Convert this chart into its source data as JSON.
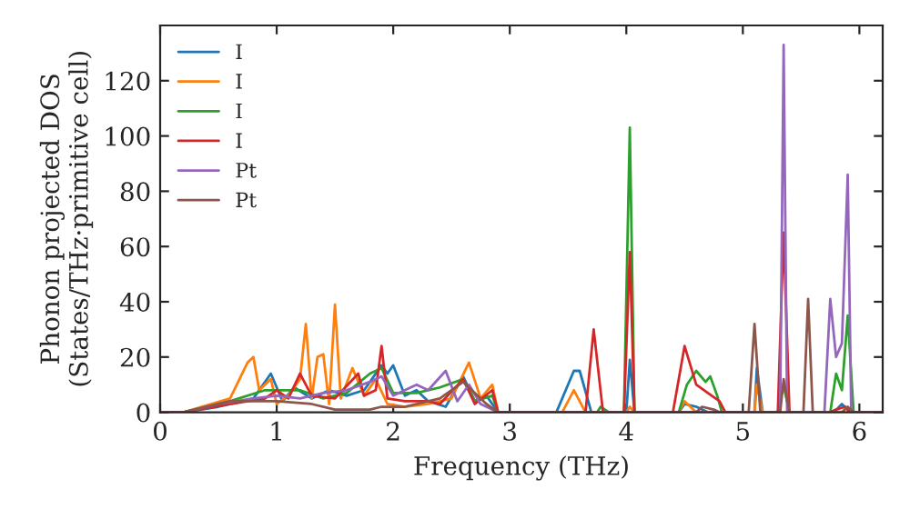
{
  "chart_data": {
    "type": "line",
    "xlabel": "Frequency (THz)",
    "ylabel": "Phonon projected DOS\n(States/THz·primitive cell)",
    "xlim": [
      0,
      6.2
    ],
    "ylim": [
      0,
      140
    ],
    "xticks": [
      0,
      1,
      2,
      3,
      4,
      5,
      6
    ],
    "yticks": [
      0,
      20,
      40,
      60,
      80,
      100,
      120
    ],
    "legend": "top left",
    "grid": false,
    "marker": "none",
    "line_style": "solid",
    "series": [
      {
        "name": "I",
        "color": "#1f77b4",
        "x": [
          0,
          0.2,
          0.5,
          0.8,
          0.95,
          1.05,
          1.15,
          1.3,
          1.45,
          1.6,
          1.75,
          1.9,
          1.95,
          2.0,
          2.1,
          2.2,
          2.3,
          2.45,
          2.6,
          2.7,
          2.8,
          2.9,
          3.4,
          3.55,
          3.6,
          3.7,
          4.0,
          4.03,
          4.07,
          4.45,
          4.5,
          4.6,
          4.7,
          5.1,
          5.12,
          5.17,
          5.3,
          5.35,
          5.4,
          5.78,
          5.85,
          5.92,
          6.2
        ],
        "values": [
          0,
          0,
          2,
          5,
          14,
          4,
          9,
          5,
          8,
          6,
          8,
          17,
          14,
          17,
          6,
          8,
          4,
          2,
          13,
          4,
          6,
          0,
          0,
          15,
          15,
          0,
          0,
          19,
          0,
          0,
          3,
          2,
          0,
          0,
          16,
          0,
          0,
          10,
          0,
          0,
          3,
          0,
          0
        ]
      },
      {
        "name": "I",
        "color": "#ff7f0e",
        "x": [
          0,
          0.2,
          0.6,
          0.75,
          0.8,
          0.85,
          0.95,
          1.0,
          1.1,
          1.2,
          1.25,
          1.3,
          1.35,
          1.4,
          1.45,
          1.5,
          1.55,
          1.65,
          1.75,
          1.85,
          1.95,
          2.1,
          2.3,
          2.5,
          2.65,
          2.75,
          2.85,
          2.9,
          3.45,
          3.55,
          3.65,
          4.0,
          4.03,
          4.07,
          4.45,
          4.5,
          4.6,
          5.1,
          5.12,
          5.17,
          6.2
        ],
        "values": [
          0,
          0,
          5,
          18,
          20,
          8,
          12,
          3,
          6,
          12,
          32,
          5,
          20,
          21,
          3,
          39,
          5,
          16,
          6,
          12,
          3,
          2,
          3,
          5,
          18,
          5,
          10,
          0,
          0,
          8,
          0,
          0,
          2,
          0,
          0,
          4,
          0,
          0,
          10,
          0,
          0
        ]
      },
      {
        "name": "I",
        "color": "#2ca02c",
        "x": [
          0,
          0.2,
          0.6,
          0.9,
          1.2,
          1.4,
          1.6,
          1.8,
          1.9,
          2.0,
          2.2,
          2.4,
          2.6,
          2.7,
          2.85,
          2.9,
          3.75,
          3.78,
          3.85,
          3.98,
          4.03,
          4.07,
          4.45,
          4.52,
          4.6,
          4.68,
          4.72,
          4.78,
          4.82,
          5.3,
          5.35,
          5.4,
          5.75,
          5.8,
          5.85,
          5.9,
          5.95,
          6.2
        ],
        "values": [
          0,
          0,
          4,
          8,
          8,
          5,
          7,
          14,
          16,
          7,
          7,
          9,
          12,
          4,
          6,
          0,
          0,
          2,
          0,
          0,
          103,
          0,
          0,
          10,
          15,
          11,
          13,
          6,
          0,
          0,
          10,
          0,
          0,
          14,
          8,
          35,
          0,
          0
        ]
      },
      {
        "name": "I",
        "color": "#d62728",
        "x": [
          0,
          0.2,
          0.6,
          0.9,
          1.0,
          1.1,
          1.2,
          1.3,
          1.5,
          1.7,
          1.75,
          1.85,
          1.9,
          1.95,
          2.1,
          2.3,
          2.4,
          2.6,
          2.7,
          2.85,
          2.9,
          3.65,
          3.72,
          3.8,
          3.98,
          4.03,
          4.07,
          4.4,
          4.5,
          4.6,
          4.7,
          4.8,
          4.85,
          5.3,
          5.35,
          5.4,
          5.75,
          5.8,
          5.88,
          5.92,
          6.2
        ],
        "values": [
          0,
          0,
          3,
          5,
          8,
          5,
          14,
          6,
          5,
          14,
          6,
          8,
          24,
          5,
          4,
          4,
          3,
          12,
          3,
          8,
          0,
          0,
          30,
          0,
          0,
          58,
          0,
          0,
          24,
          10,
          7,
          4,
          0,
          0,
          65,
          0,
          0,
          1,
          2,
          0,
          0
        ]
      },
      {
        "name": "Pt",
        "color": "#9467bd",
        "x": [
          0,
          0.2,
          0.5,
          0.8,
          1.0,
          1.2,
          1.4,
          1.6,
          1.8,
          1.9,
          2.0,
          2.2,
          2.3,
          2.45,
          2.55,
          2.65,
          2.75,
          2.9,
          5.32,
          5.35,
          5.38,
          5.7,
          5.75,
          5.8,
          5.85,
          5.9,
          5.93,
          6.2
        ],
        "values": [
          0,
          0,
          3,
          5,
          6,
          5,
          7,
          8,
          11,
          13,
          6,
          10,
          8,
          15,
          4,
          10,
          3,
          0,
          0,
          133,
          0,
          0,
          41,
          20,
          25,
          86,
          0,
          0
        ]
      },
      {
        "name": "Pt",
        "color": "#8c564b",
        "x": [
          0,
          0.2,
          0.6,
          1.0,
          1.3,
          1.5,
          1.8,
          1.9,
          2.1,
          2.4,
          2.6,
          2.8,
          2.9,
          4.6,
          4.65,
          4.75,
          4.8,
          5.05,
          5.1,
          5.15,
          5.32,
          5.35,
          5.4,
          5.52,
          5.56,
          5.6,
          5.85,
          5.9,
          5.95,
          6.2
        ],
        "values": [
          0,
          0,
          4,
          4,
          3,
          1,
          1,
          2,
          2,
          5,
          11,
          3,
          0,
          0,
          2,
          1,
          0,
          0,
          32,
          0,
          0,
          12,
          0,
          0,
          41,
          0,
          0,
          2,
          0,
          0
        ]
      }
    ]
  }
}
